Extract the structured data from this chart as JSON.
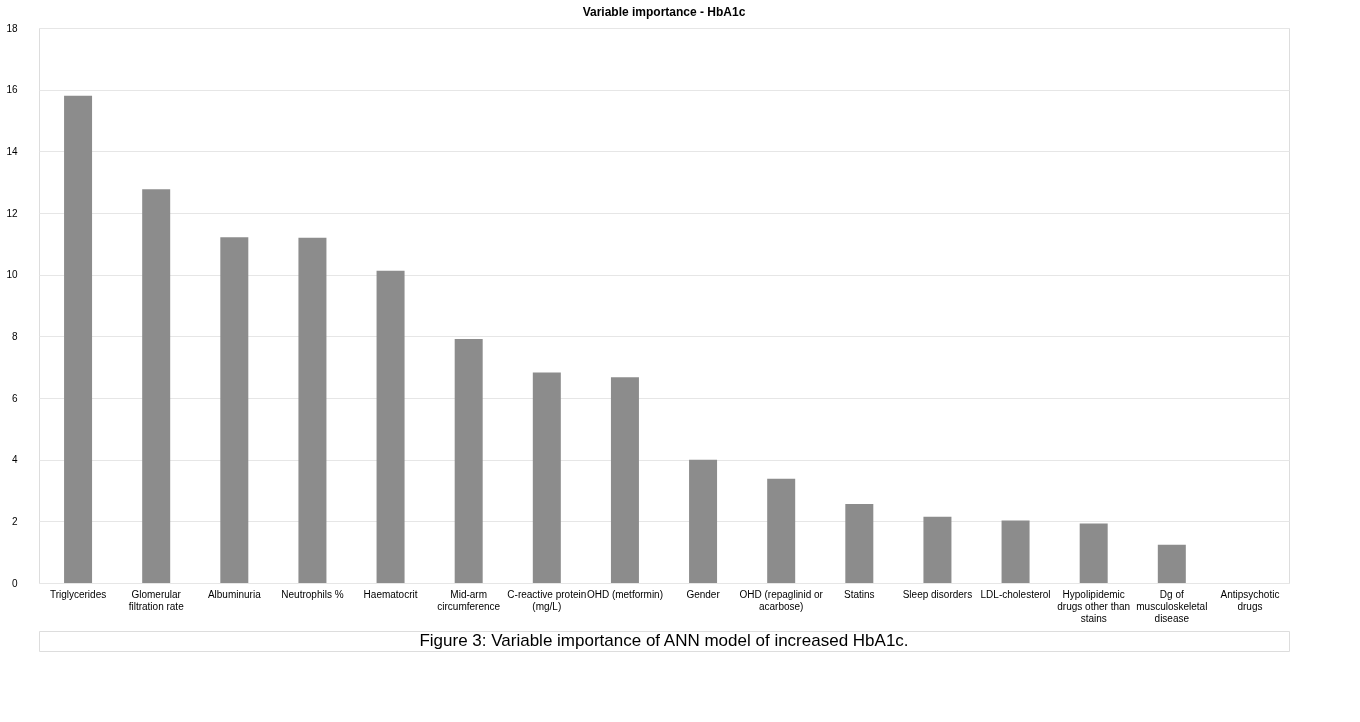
{
  "chart_data": {
    "type": "bar",
    "title": "Variable importance - HbA1c",
    "categories": [
      "Triglycerides",
      "Glomerular filtration rate",
      "Albuminuria",
      "Neutrophils %",
      "Haematocrit",
      "Mid-arm circumference",
      "C-reactive protein (mg/L)",
      "OHD (metformin)",
      "Gender",
      "OHD (repaglinid or acarbose)",
      "Statins",
      "Sleep disorders",
      "LDL-cholesterol",
      "Hypolipidemic drugs other than stains",
      "Dg of musculoskeletal disease",
      "Antipsychotic drugs"
    ],
    "values": [
      15.8,
      12.77,
      11.21,
      11.2,
      10.13,
      7.91,
      6.83,
      6.67,
      4.0,
      3.38,
      2.56,
      2.15,
      2.03,
      1.93,
      1.24,
      0
    ],
    "color": "#8c8c8c",
    "ylim": [
      0,
      18
    ],
    "yticks": [
      0,
      2,
      4,
      6,
      8,
      10,
      12,
      14,
      16,
      18
    ],
    "grid": "y",
    "annotations": [
      "Figure 3: Variable importance of ANN model of increased HbA1c."
    ]
  }
}
